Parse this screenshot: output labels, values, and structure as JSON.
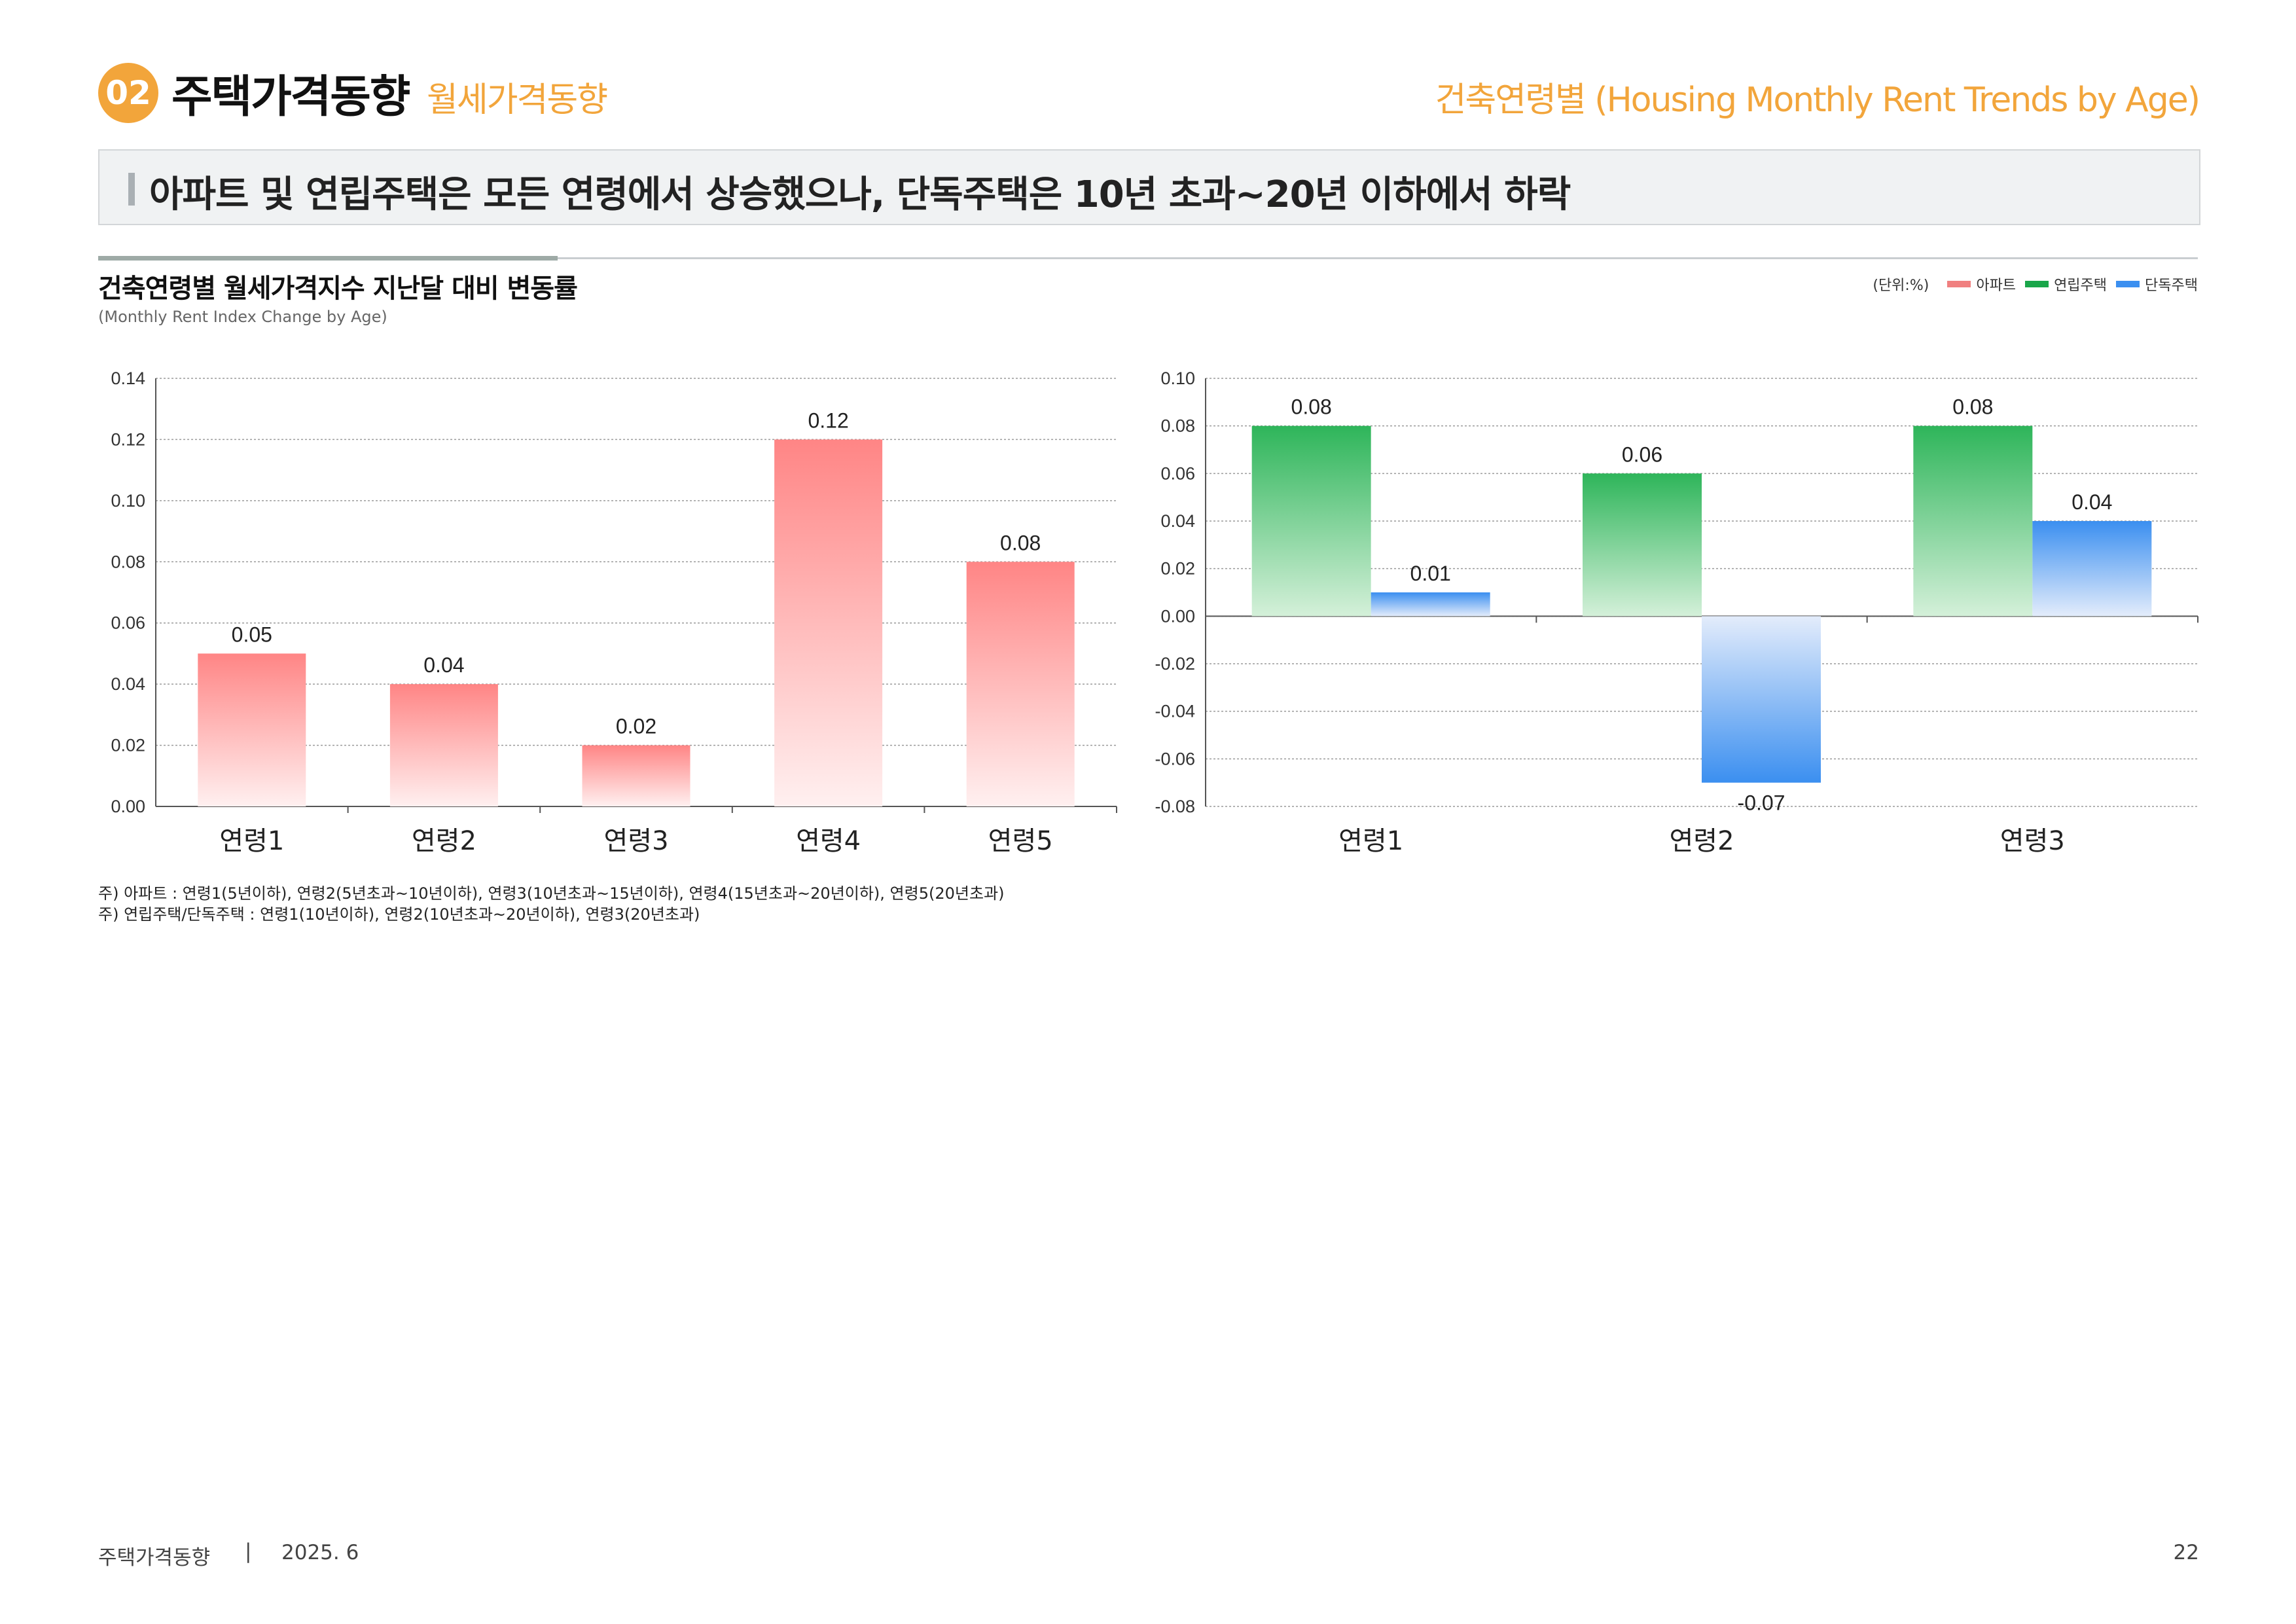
{
  "header": {
    "number": "02",
    "section_title": "주택가격동향",
    "section_subtitle": "월세가격동향",
    "page_topic": "건축연령별 (Housing Monthly Rent Trends by Age)"
  },
  "headline": "아파트 및 연립주택은 모든 연령에서 상승했으나, 단독주택은 10년 초과~20년 이하에서 하락",
  "chart_header": {
    "title": "건축연령별 월세가격지수 지난달 대비 변동률",
    "subtitle": "(Monthly Rent Index Change by Age)",
    "unit": "(단위:%)"
  },
  "legend": [
    {
      "name": "아파트",
      "color": "#f08080"
    },
    {
      "name": "연립주택",
      "color": "#1aa64a"
    },
    {
      "name": "단독주택",
      "color": "#3b8ff0"
    }
  ],
  "colors": {
    "apt_top": "#ff8585",
    "apt_bottom": "#fff0f0",
    "row_top": "#2eb55a",
    "row_bottom": "#d4f0d9",
    "det_top": "#3b8ff0",
    "det_bottom": "#e3ecfb",
    "accent": "#f2a53b"
  },
  "chart_data": [
    {
      "type": "bar",
      "title": "건축연령별 월세가격지수 지난달 대비 변동률 - 아파트",
      "categories": [
        "연령1",
        "연령2",
        "연령3",
        "연령4",
        "연령5"
      ],
      "series": [
        {
          "name": "아파트",
          "values": [
            0.05,
            0.04,
            0.02,
            0.12,
            0.08
          ]
        }
      ],
      "value_labels": [
        "0.05",
        "0.04",
        "0.02",
        "0.12",
        "0.08"
      ],
      "ylim": [
        0,
        0.14
      ],
      "yticks": [
        "0.14",
        "0.12",
        "0.10",
        "0.08",
        "0.06",
        "0.04",
        "0.02",
        "0.00"
      ],
      "ytick_values": [
        0.14,
        0.12,
        0.1,
        0.08,
        0.06,
        0.04,
        0.02,
        0.0
      ],
      "grid": true
    },
    {
      "type": "bar",
      "title": "건축연령별 월세가격지수 지난달 대비 변동률 - 연립주택/단독주택",
      "categories": [
        "연령1",
        "연령2",
        "연령3"
      ],
      "series": [
        {
          "name": "연립주택",
          "values": [
            0.08,
            0.06,
            0.08
          ],
          "labels": [
            "0.08",
            "0.06",
            "0.08"
          ]
        },
        {
          "name": "단독주택",
          "values": [
            0.01,
            -0.07,
            0.04
          ],
          "labels": [
            "0.01",
            "-0.07",
            "0.04"
          ]
        }
      ],
      "ylim": [
        -0.08,
        0.1
      ],
      "yticks": [
        "0.10",
        "0.08",
        "0.06",
        "0.04",
        "0.02",
        "0.00",
        "-0.02",
        "-0.04",
        "-0.06",
        "-0.08"
      ],
      "ytick_values": [
        0.1,
        0.08,
        0.06,
        0.04,
        0.02,
        0.0,
        -0.02,
        -0.04,
        -0.06,
        -0.08
      ],
      "grid": true
    }
  ],
  "notes": [
    "주) 아파트 : 연령1(5년이하), 연령2(5년초과~10년이하), 연령3(10년초과~15년이하), 연령4(15년초과~20년이하), 연령5(20년초과)",
    "주) 연립주택/단독주택 : 연령1(10년이하), 연령2(10년초과~20년이하), 연령3(20년초과)"
  ],
  "footer": {
    "title": "주택가격동향",
    "separator": "|",
    "date": "2025. 6",
    "page": "22"
  }
}
